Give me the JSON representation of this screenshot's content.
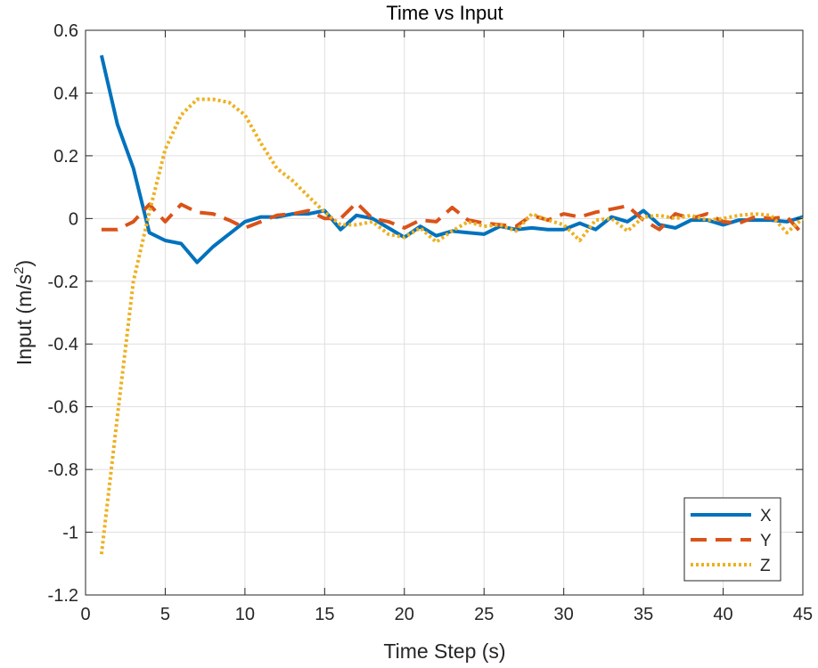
{
  "chart_data": {
    "type": "line",
    "title": "Time vs Input",
    "xlabel": "Time Step (s)",
    "ylabel_main": "Input (m/s",
    "ylabel_sup": "2",
    "ylabel_close": ")",
    "xlim": [
      0,
      45
    ],
    "ylim": [
      -1.2,
      0.6
    ],
    "xticks": [
      0,
      5,
      10,
      15,
      20,
      25,
      30,
      35,
      40,
      45
    ],
    "xtick_labels": [
      "0",
      "5",
      "10",
      "15",
      "20",
      "25",
      "30",
      "35",
      "40",
      "45"
    ],
    "yticks": [
      -1.2,
      -1,
      -0.8,
      -0.6,
      -0.4,
      -0.2,
      0,
      0.2,
      0.4,
      0.6
    ],
    "ytick_labels": [
      "-1.2",
      "-1",
      "-0.8",
      "-0.6",
      "-0.4",
      "-0.2",
      "0",
      "0.2",
      "0.4",
      "0.6"
    ],
    "grid": true,
    "legend_position": "bottom-right",
    "x": [
      1,
      2,
      3,
      4,
      5,
      6,
      7,
      8,
      9,
      10,
      11,
      12,
      13,
      14,
      15,
      16,
      17,
      18,
      19,
      20,
      21,
      22,
      23,
      24,
      25,
      26,
      27,
      28,
      29,
      30,
      31,
      32,
      33,
      34,
      35,
      36,
      37,
      38,
      39,
      40,
      41,
      42,
      43,
      44,
      45
    ],
    "series": [
      {
        "name": "X",
        "color": "#0072BD",
        "style": "solid",
        "values": [
          0.52,
          0.3,
          0.16,
          -0.045,
          -0.07,
          -0.08,
          -0.14,
          -0.09,
          -0.05,
          -0.01,
          0.005,
          0.005,
          0.015,
          0.015,
          0.025,
          -0.035,
          0.01,
          0.0,
          -0.03,
          -0.06,
          -0.025,
          -0.055,
          -0.04,
          -0.045,
          -0.05,
          -0.025,
          -0.035,
          -0.03,
          -0.035,
          -0.035,
          -0.015,
          -0.035,
          0.005,
          -0.01,
          0.025,
          -0.02,
          -0.03,
          -0.005,
          -0.005,
          -0.02,
          -0.005,
          -0.005,
          -0.005,
          -0.01,
          0.005
        ]
      },
      {
        "name": "Y",
        "color": "#D95319",
        "style": "dashed",
        "values": [
          -0.035,
          -0.035,
          -0.01,
          0.045,
          -0.01,
          0.045,
          0.02,
          0.015,
          -0.005,
          -0.03,
          -0.01,
          0.01,
          0.015,
          0.025,
          0.0,
          0.0,
          0.05,
          0.0,
          -0.01,
          -0.03,
          -0.005,
          -0.01,
          0.035,
          -0.005,
          -0.015,
          -0.02,
          -0.025,
          0.01,
          -0.005,
          0.015,
          0.005,
          0.02,
          0.03,
          0.04,
          -0.005,
          -0.035,
          0.015,
          0.0,
          0.015,
          -0.01,
          -0.015,
          0.005,
          0.0,
          0.005,
          -0.05
        ]
      },
      {
        "name": "Z",
        "color": "#EDB120",
        "style": "dotted",
        "values": [
          -1.07,
          -0.63,
          -0.2,
          0.02,
          0.22,
          0.33,
          0.38,
          0.38,
          0.37,
          0.33,
          0.24,
          0.16,
          0.12,
          0.07,
          0.02,
          -0.02,
          -0.02,
          -0.01,
          -0.05,
          -0.06,
          -0.03,
          -0.075,
          -0.04,
          -0.01,
          -0.025,
          -0.02,
          -0.04,
          0.015,
          -0.005,
          -0.02,
          -0.07,
          -0.005,
          0.0,
          -0.04,
          0.005,
          0.01,
          0.0,
          0.01,
          -0.005,
          0.0,
          0.01,
          0.015,
          0.01,
          -0.045,
          0.0
        ]
      }
    ]
  }
}
